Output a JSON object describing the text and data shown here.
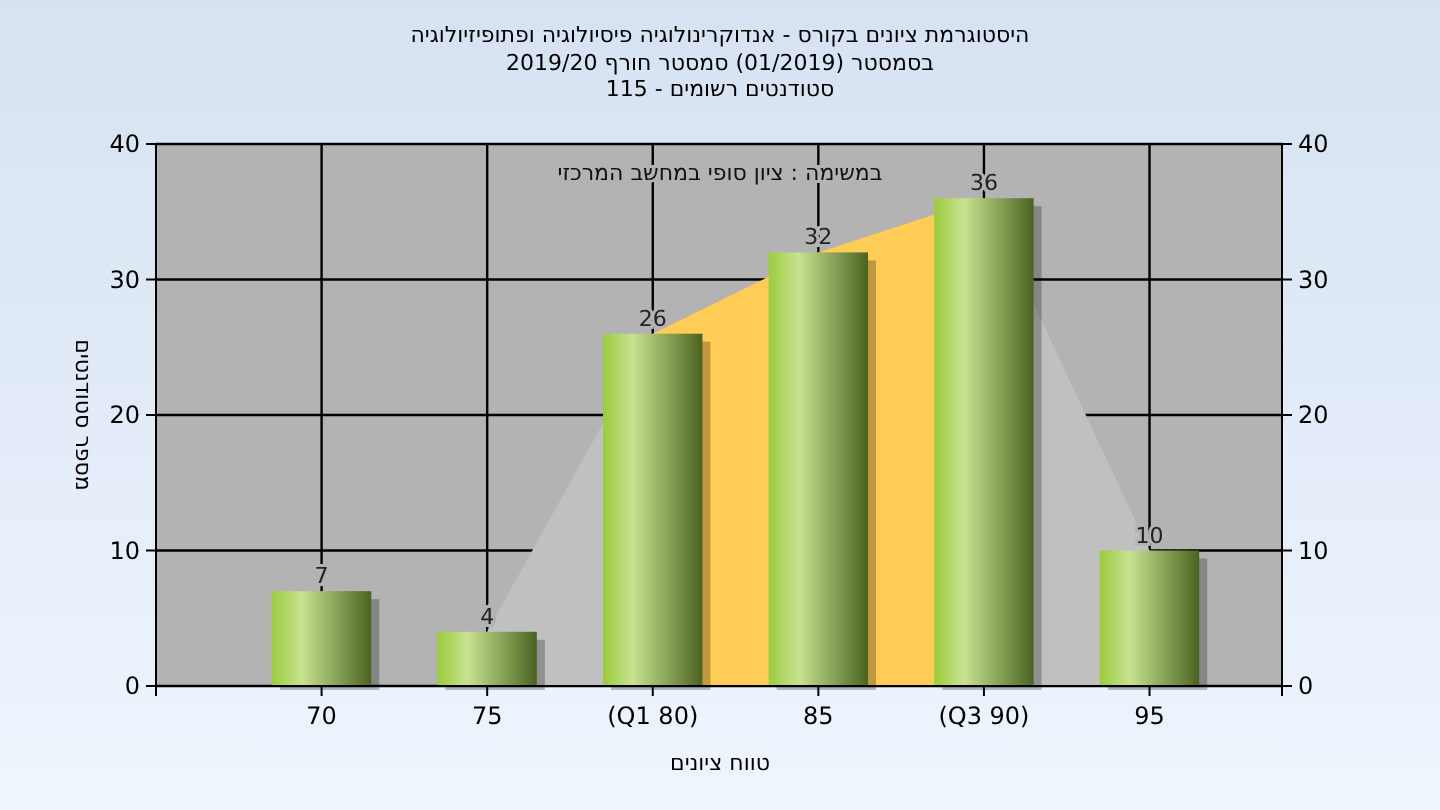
{
  "chart_data": {
    "type": "bar",
    "title": "היסטוגרמת ציונים בקורס - אנדוקרינולוגיה פיסיולוגיה ופתופיזיולוגיה",
    "subtitle": "בסמסטר  (01/2019)  סמסטר חורף 2019/20\nסטודנטים רשומים - 115",
    "xlabel": "טווח ציונים",
    "ylabel": "מספר סטודנטים",
    "annotations": [
      "במשימה : ציון סופי במחשב המרכזי"
    ],
    "categories": [
      "70",
      "75",
      "(Q1 80)",
      "85",
      "(Q3 90)",
      "95"
    ],
    "series": [
      {
        "type": "area",
        "color": "#c0c0c0",
        "values": [
          null,
          4,
          26,
          null,
          36,
          10
        ]
      },
      {
        "type": "area",
        "color": "#ffcc55",
        "values": [
          null,
          null,
          26,
          32,
          36,
          null
        ]
      },
      {
        "color": "#9ccc3c",
        "values": [
          7,
          4,
          26,
          32,
          36,
          10
        ],
        "value_labels": [
          "7",
          "4",
          "26",
          "32",
          "36",
          "10"
        ]
      }
    ],
    "ylim": [
      0,
      40
    ],
    "yticks": [
      0,
      10,
      20,
      30,
      40
    ],
    "y2lim": [
      0,
      40
    ],
    "y2ticks": [
      0,
      10,
      20,
      30,
      40
    ],
    "grid": true
  }
}
